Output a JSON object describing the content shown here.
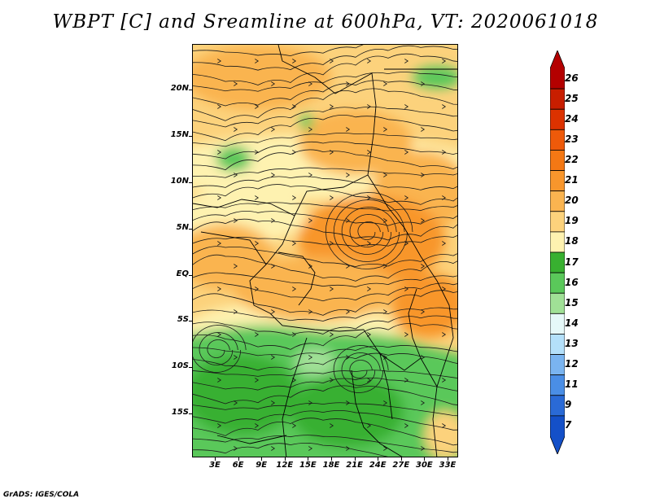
{
  "title": "WBPT [C] and Sreamline at 600hPa, VT: 2020061018",
  "footer": "GrADS: IGES/COLA",
  "lat_labels": [
    "20N",
    "15N",
    "10N",
    "5N",
    "EQ",
    "5S",
    "10S",
    "15S"
  ],
  "lon_labels": [
    "3E",
    "6E",
    "9E",
    "12E",
    "15E",
    "18E",
    "21E",
    "24E",
    "27E",
    "30E",
    "33E"
  ],
  "colorbar": {
    "labels": [
      "26",
      "25",
      "24",
      "23",
      "22",
      "21",
      "20",
      "19",
      "18",
      "17",
      "16",
      "15",
      "14",
      "13",
      "12",
      "11",
      "9",
      "7"
    ],
    "colors": [
      "#b40000",
      "#c81e00",
      "#dc3200",
      "#ee5a0a",
      "#f47814",
      "#f8962c",
      "#fab450",
      "#fcd27c",
      "#fef2b0",
      "#38b030",
      "#5ac85a",
      "#a0e096",
      "#e6f8f8",
      "#b4e0fa",
      "#7ab4f0",
      "#4a8ee6",
      "#2a6ad6",
      "#1450c8"
    ]
  },
  "map_colors": {
    "green_dark": "#38b030",
    "green_mid": "#5ac85a",
    "green_light": "#a0e096",
    "yellow": "#fef2b0",
    "tan": "#fcd27c",
    "orange_light": "#fab450",
    "orange": "#f8962c",
    "streamline": "#1a1a1a"
  }
}
